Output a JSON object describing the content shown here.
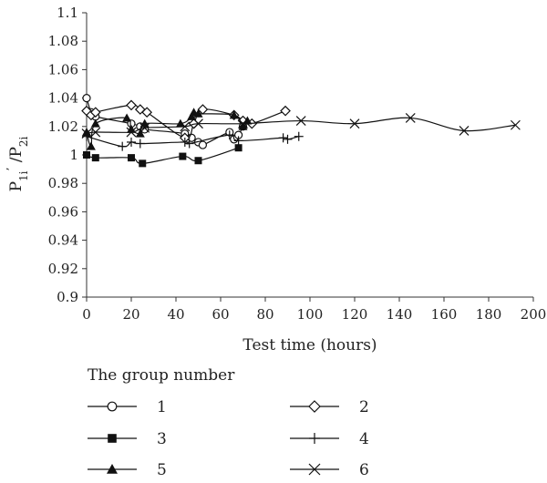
{
  "chart_data": {
    "type": "line",
    "xlabel": "Test time (hours)",
    "ylabel_main": "P",
    "ylabel_sub1": "1i",
    "ylabel_prime": "’",
    "ylabel_slash": " /P",
    "ylabel_sub2": "2i",
    "xlim": [
      0,
      200
    ],
    "ylim": [
      0.9,
      1.1
    ],
    "xticks": [
      "0",
      "20",
      "40",
      "60",
      "80",
      "100",
      "120",
      "140",
      "160",
      "180",
      "200"
    ],
    "yticks": [
      "0.9",
      "0.92",
      "0.94",
      "0.96",
      "0.98",
      "1",
      "1.02",
      "1.04",
      "1.06",
      "1.08",
      "1.1"
    ],
    "legend_title": "The group number",
    "grid": false,
    "series": [
      {
        "name": "1",
        "marker": "circle-open",
        "x": [
          0,
          2,
          4,
          20,
          24,
          26,
          44,
          47,
          50,
          52,
          64,
          66,
          68,
          70
        ],
        "y": [
          1.04,
          1.03,
          1.027,
          1.022,
          1.02,
          1.018,
          1.015,
          1.012,
          1.009,
          1.007,
          1.016,
          1.011,
          1.014,
          1.02
        ]
      },
      {
        "name": "2",
        "marker": "diamond-open",
        "x": [
          0,
          2,
          4,
          20,
          24,
          27,
          44,
          48,
          52,
          66,
          70,
          74,
          89
        ],
        "y": [
          1.031,
          1.028,
          1.03,
          1.035,
          1.032,
          1.03,
          1.012,
          1.022,
          1.032,
          1.028,
          1.024,
          1.022,
          1.031
        ]
      },
      {
        "name": "3",
        "marker": "square-filled",
        "x": [
          0,
          4,
          20,
          25,
          43,
          50,
          68
        ],
        "y": [
          1.0,
          0.998,
          0.998,
          0.994,
          0.999,
          0.996,
          1.005
        ]
      },
      {
        "name": "4",
        "marker": "plus",
        "x": [
          0,
          16,
          20,
          24,
          44,
          46,
          64,
          68,
          88,
          90,
          95
        ],
        "y": [
          1.013,
          1.006,
          1.009,
          1.008,
          1.009,
          1.008,
          1.014,
          1.01,
          1.012,
          1.011,
          1.013
        ]
      },
      {
        "name": "5",
        "marker": "triangle-filled",
        "x": [
          0,
          2,
          4,
          18,
          20,
          24,
          26,
          42,
          47,
          48,
          50,
          66,
          70,
          72
        ],
        "y": [
          1.016,
          1.006,
          1.022,
          1.026,
          1.018,
          1.015,
          1.022,
          1.022,
          1.027,
          1.03,
          1.029,
          1.028,
          1.02,
          1.024
        ]
      },
      {
        "name": "6",
        "marker": "x",
        "x": [
          0,
          4,
          20,
          26,
          44,
          50,
          70,
          96,
          120,
          145,
          169,
          192
        ],
        "y": [
          1.015,
          1.016,
          1.016,
          1.019,
          1.02,
          1.022,
          1.022,
          1.024,
          1.022,
          1.026,
          1.017,
          1.021
        ]
      }
    ]
  }
}
